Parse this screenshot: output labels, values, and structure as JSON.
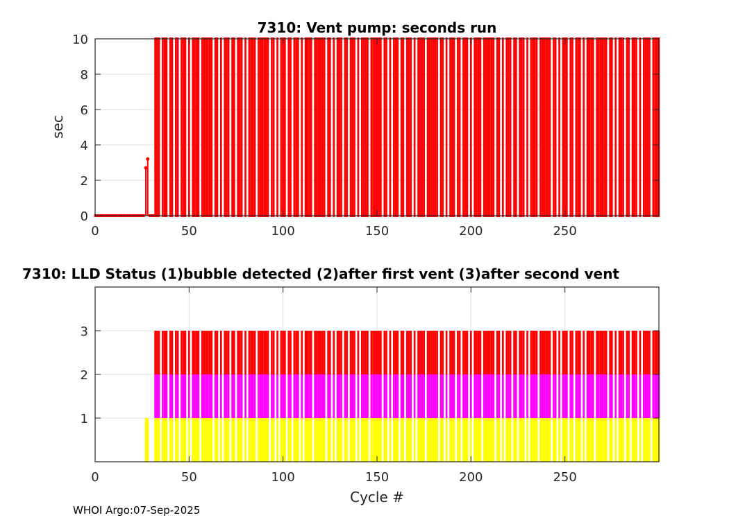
{
  "footer": "WHOI Argo:07-Sep-2025",
  "chart_data": [
    {
      "type": "line",
      "title": "7310: Vent pump: seconds run",
      "xlabel": "",
      "ylabel": "sec",
      "xlim": [
        0,
        300
      ],
      "ylim": [
        0,
        10
      ],
      "xticks": [
        "0",
        "50",
        "100",
        "150",
        "200",
        "250"
      ],
      "yticks": [
        "0",
        "2",
        "4",
        "6",
        "8",
        "10"
      ],
      "grid": true,
      "color": "#ff0000",
      "x_start": 0,
      "values": [
        0,
        0,
        0,
        0,
        0,
        0,
        0,
        0,
        0,
        0,
        0,
        0,
        0,
        0,
        0,
        0,
        0,
        0,
        0,
        0,
        0,
        0,
        0,
        0,
        0,
        0,
        0,
        2.7,
        3.2,
        0,
        0,
        0,
        10,
        10,
        10,
        null,
        10,
        10,
        10,
        null,
        10,
        10,
        null,
        10,
        10,
        null,
        10,
        10,
        10,
        null,
        10,
        null,
        10,
        10,
        10,
        10,
        null,
        10,
        10,
        10,
        10,
        10,
        10,
        null,
        10,
        10,
        null,
        10,
        null,
        10,
        10,
        10,
        null,
        10,
        10,
        null,
        10,
        10,
        10,
        null,
        10,
        null,
        10,
        10,
        10,
        10,
        null,
        10,
        10,
        10,
        10,
        10,
        10,
        null,
        10,
        10,
        null,
        10,
        null,
        10,
        10,
        10,
        null,
        10,
        10,
        null,
        10,
        10,
        10,
        null,
        10,
        null,
        10,
        10,
        10,
        10,
        null,
        10,
        10,
        10,
        10,
        10,
        10,
        null,
        10,
        10,
        null,
        10,
        null,
        10,
        10,
        10,
        null,
        10,
        10,
        null,
        10,
        10,
        10,
        null,
        10,
        null,
        10,
        10,
        10,
        10,
        null,
        10,
        10,
        10,
        10,
        10,
        10,
        null,
        10,
        10,
        null,
        10,
        null,
        10,
        10,
        10,
        null,
        10,
        10,
        null,
        10,
        10,
        10,
        null,
        10,
        null,
        10,
        10,
        10,
        10,
        null,
        10,
        10,
        10,
        10,
        10,
        10,
        null,
        10,
        10,
        null,
        10,
        null,
        10,
        10,
        10,
        null,
        10,
        10,
        null,
        10,
        10,
        10,
        null,
        10,
        null,
        10,
        10,
        10,
        10,
        null,
        10,
        10,
        10,
        10,
        10,
        10,
        null,
        10,
        10,
        null,
        10,
        null,
        10,
        10,
        10,
        null,
        10,
        10,
        null,
        10,
        10,
        10,
        null,
        10,
        null,
        10,
        10,
        10,
        10,
        null,
        10,
        10,
        10,
        10,
        10,
        10,
        null,
        10,
        10,
        null,
        10,
        null,
        10,
        10,
        10,
        null,
        10,
        10,
        null,
        10,
        10,
        10,
        null,
        10,
        null,
        10,
        10,
        10,
        10,
        null,
        10,
        10,
        10,
        10,
        10,
        10,
        null,
        10,
        10,
        null,
        10,
        null,
        10,
        10,
        10,
        null,
        10,
        10,
        null,
        10,
        10,
        10,
        null,
        10,
        null,
        10,
        10,
        10,
        10,
        null,
        10,
        10,
        10,
        10
      ]
    },
    {
      "type": "bar",
      "title": "7310: LLD Status   (1)bubble detected   (2)after first vent  (3)after second vent",
      "xlabel": "Cycle #",
      "ylabel": "",
      "xlim": [
        0,
        300
      ],
      "ylim": [
        0,
        4
      ],
      "xticks": [
        "0",
        "50",
        "100",
        "150",
        "200",
        "250"
      ],
      "yticks": [
        "1",
        "2",
        "3"
      ],
      "grid": true,
      "level_colors": [
        "#ffff00",
        "#ff00ff",
        "#ff0000"
      ],
      "x_start": 0,
      "values": [
        0,
        0,
        0,
        0,
        0,
        0,
        0,
        0,
        0,
        0,
        0,
        0,
        0,
        0,
        0,
        0,
        0,
        0,
        0,
        0,
        0,
        0,
        0,
        0,
        0,
        0,
        0,
        1,
        1,
        0,
        0,
        0,
        3,
        3,
        3,
        null,
        3,
        3,
        3,
        null,
        3,
        3,
        null,
        3,
        3,
        null,
        3,
        3,
        3,
        null,
        3,
        null,
        3,
        3,
        3,
        3,
        null,
        3,
        3,
        3,
        3,
        3,
        3,
        null,
        3,
        3,
        null,
        3,
        null,
        3,
        3,
        3,
        null,
        3,
        3,
        null,
        3,
        3,
        3,
        null,
        3,
        null,
        3,
        3,
        3,
        3,
        null,
        3,
        3,
        3,
        3,
        3,
        3,
        null,
        3,
        3,
        null,
        3,
        null,
        3,
        3,
        3,
        null,
        3,
        3,
        null,
        3,
        3,
        3,
        null,
        3,
        null,
        3,
        3,
        3,
        3,
        null,
        3,
        3,
        3,
        3,
        3,
        3,
        null,
        3,
        3,
        null,
        3,
        null,
        3,
        3,
        3,
        null,
        3,
        3,
        null,
        3,
        3,
        3,
        null,
        3,
        null,
        3,
        3,
        3,
        3,
        null,
        3,
        3,
        3,
        3,
        3,
        3,
        null,
        3,
        3,
        null,
        3,
        null,
        3,
        3,
        3,
        null,
        3,
        3,
        null,
        3,
        3,
        3,
        null,
        3,
        null,
        3,
        3,
        3,
        3,
        null,
        3,
        3,
        3,
        3,
        3,
        3,
        null,
        3,
        3,
        null,
        3,
        null,
        3,
        3,
        3,
        null,
        3,
        3,
        null,
        3,
        3,
        3,
        null,
        3,
        null,
        3,
        3,
        3,
        3,
        null,
        3,
        3,
        3,
        3,
        3,
        3,
        null,
        3,
        3,
        null,
        3,
        null,
        3,
        3,
        3,
        null,
        3,
        3,
        null,
        3,
        3,
        3,
        null,
        3,
        null,
        3,
        3,
        3,
        3,
        null,
        3,
        3,
        3,
        3,
        3,
        3,
        null,
        3,
        3,
        null,
        3,
        null,
        3,
        3,
        3,
        null,
        3,
        3,
        null,
        3,
        3,
        3,
        null,
        3,
        null,
        3,
        3,
        3,
        3,
        null,
        3,
        3,
        3,
        3,
        3,
        3,
        null,
        3,
        3,
        null,
        3,
        null,
        3,
        3,
        3,
        null,
        3,
        3,
        null,
        3,
        3,
        3,
        null,
        3,
        null,
        3,
        3,
        3,
        3,
        null,
        3,
        3,
        3,
        3
      ]
    }
  ]
}
